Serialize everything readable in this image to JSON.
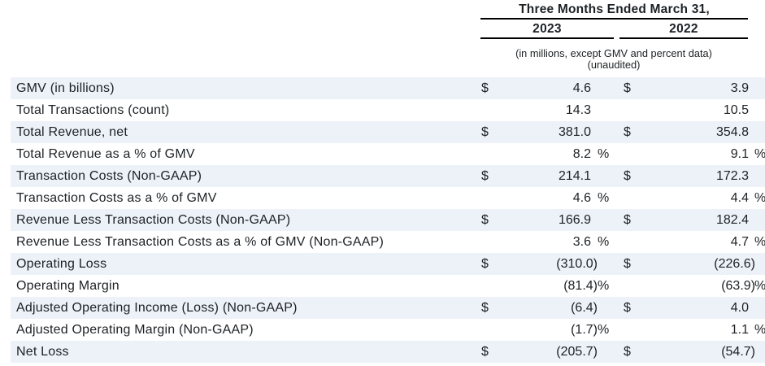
{
  "header": {
    "period_title": "Three Months Ended March 31,",
    "col_2023": "2023",
    "col_2022": "2022",
    "note_line1": "(in millions, except GMV and percent data)",
    "note_line2": "(unaudited)"
  },
  "colors": {
    "row_stripe": "#edf2f8",
    "text": "#1d2125",
    "rule": "#000000"
  },
  "table": {
    "rows": [
      {
        "label": "GMV (in billions)",
        "shaded": true,
        "y2023": {
          "dollar": "$",
          "value": "4.6",
          "pct": false
        },
        "y2022": {
          "dollar": "$",
          "value": "3.9",
          "pct": false
        }
      },
      {
        "label": "Total Transactions (count)",
        "shaded": false,
        "y2023": {
          "dollar": "",
          "value": "14.3",
          "pct": false
        },
        "y2022": {
          "dollar": "",
          "value": "10.5",
          "pct": false
        }
      },
      {
        "label": "Total Revenue, net",
        "shaded": true,
        "y2023": {
          "dollar": "$",
          "value": "381.0",
          "pct": false
        },
        "y2022": {
          "dollar": "$",
          "value": "354.8",
          "pct": false
        }
      },
      {
        "label": "Total Revenue as a % of GMV",
        "shaded": false,
        "y2023": {
          "dollar": "",
          "value": "8.2",
          "pct": true
        },
        "y2022": {
          "dollar": "",
          "value": "9.1",
          "pct": true
        }
      },
      {
        "label": "Transaction Costs (Non-GAAP)",
        "shaded": true,
        "y2023": {
          "dollar": "$",
          "value": "214.1",
          "pct": false
        },
        "y2022": {
          "dollar": "$",
          "value": "172.3",
          "pct": false
        }
      },
      {
        "label": "Transaction Costs as a % of GMV",
        "shaded": false,
        "y2023": {
          "dollar": "",
          "value": "4.6",
          "pct": true
        },
        "y2022": {
          "dollar": "",
          "value": "4.4",
          "pct": true
        }
      },
      {
        "label": "Revenue Less Transaction Costs (Non-GAAP)",
        "shaded": true,
        "y2023": {
          "dollar": "$",
          "value": "166.9",
          "pct": false
        },
        "y2022": {
          "dollar": "$",
          "value": "182.4",
          "pct": false
        }
      },
      {
        "label": "Revenue Less Transaction Costs as a % of GMV (Non-GAAP)",
        "shaded": false,
        "y2023": {
          "dollar": "",
          "value": "3.6",
          "pct": true
        },
        "y2022": {
          "dollar": "",
          "value": "4.7",
          "pct": true
        }
      },
      {
        "label": "Operating Loss",
        "shaded": true,
        "y2023": {
          "dollar": "$",
          "value": "(310.0)",
          "pct": false
        },
        "y2022": {
          "dollar": "$",
          "value": "(226.6)",
          "pct": false
        }
      },
      {
        "label": "Operating Margin",
        "shaded": false,
        "y2023": {
          "dollar": "",
          "value": "(81.4)",
          "pct": true
        },
        "y2022": {
          "dollar": "",
          "value": "(63.9)",
          "pct": true
        }
      },
      {
        "label": "Adjusted Operating Income (Loss) (Non-GAAP)",
        "shaded": true,
        "y2023": {
          "dollar": "$",
          "value": "(6.4)",
          "pct": false
        },
        "y2022": {
          "dollar": "$",
          "value": "4.0",
          "pct": false
        }
      },
      {
        "label": "Adjusted Operating Margin (Non-GAAP)",
        "shaded": false,
        "y2023": {
          "dollar": "",
          "value": "(1.7)",
          "pct": true
        },
        "y2022": {
          "dollar": "",
          "value": "1.1",
          "pct": true
        }
      },
      {
        "label": "Net Loss",
        "shaded": true,
        "y2023": {
          "dollar": "$",
          "value": "(205.7)",
          "pct": false
        },
        "y2022": {
          "dollar": "$",
          "value": "(54.7)",
          "pct": false
        }
      }
    ]
  }
}
